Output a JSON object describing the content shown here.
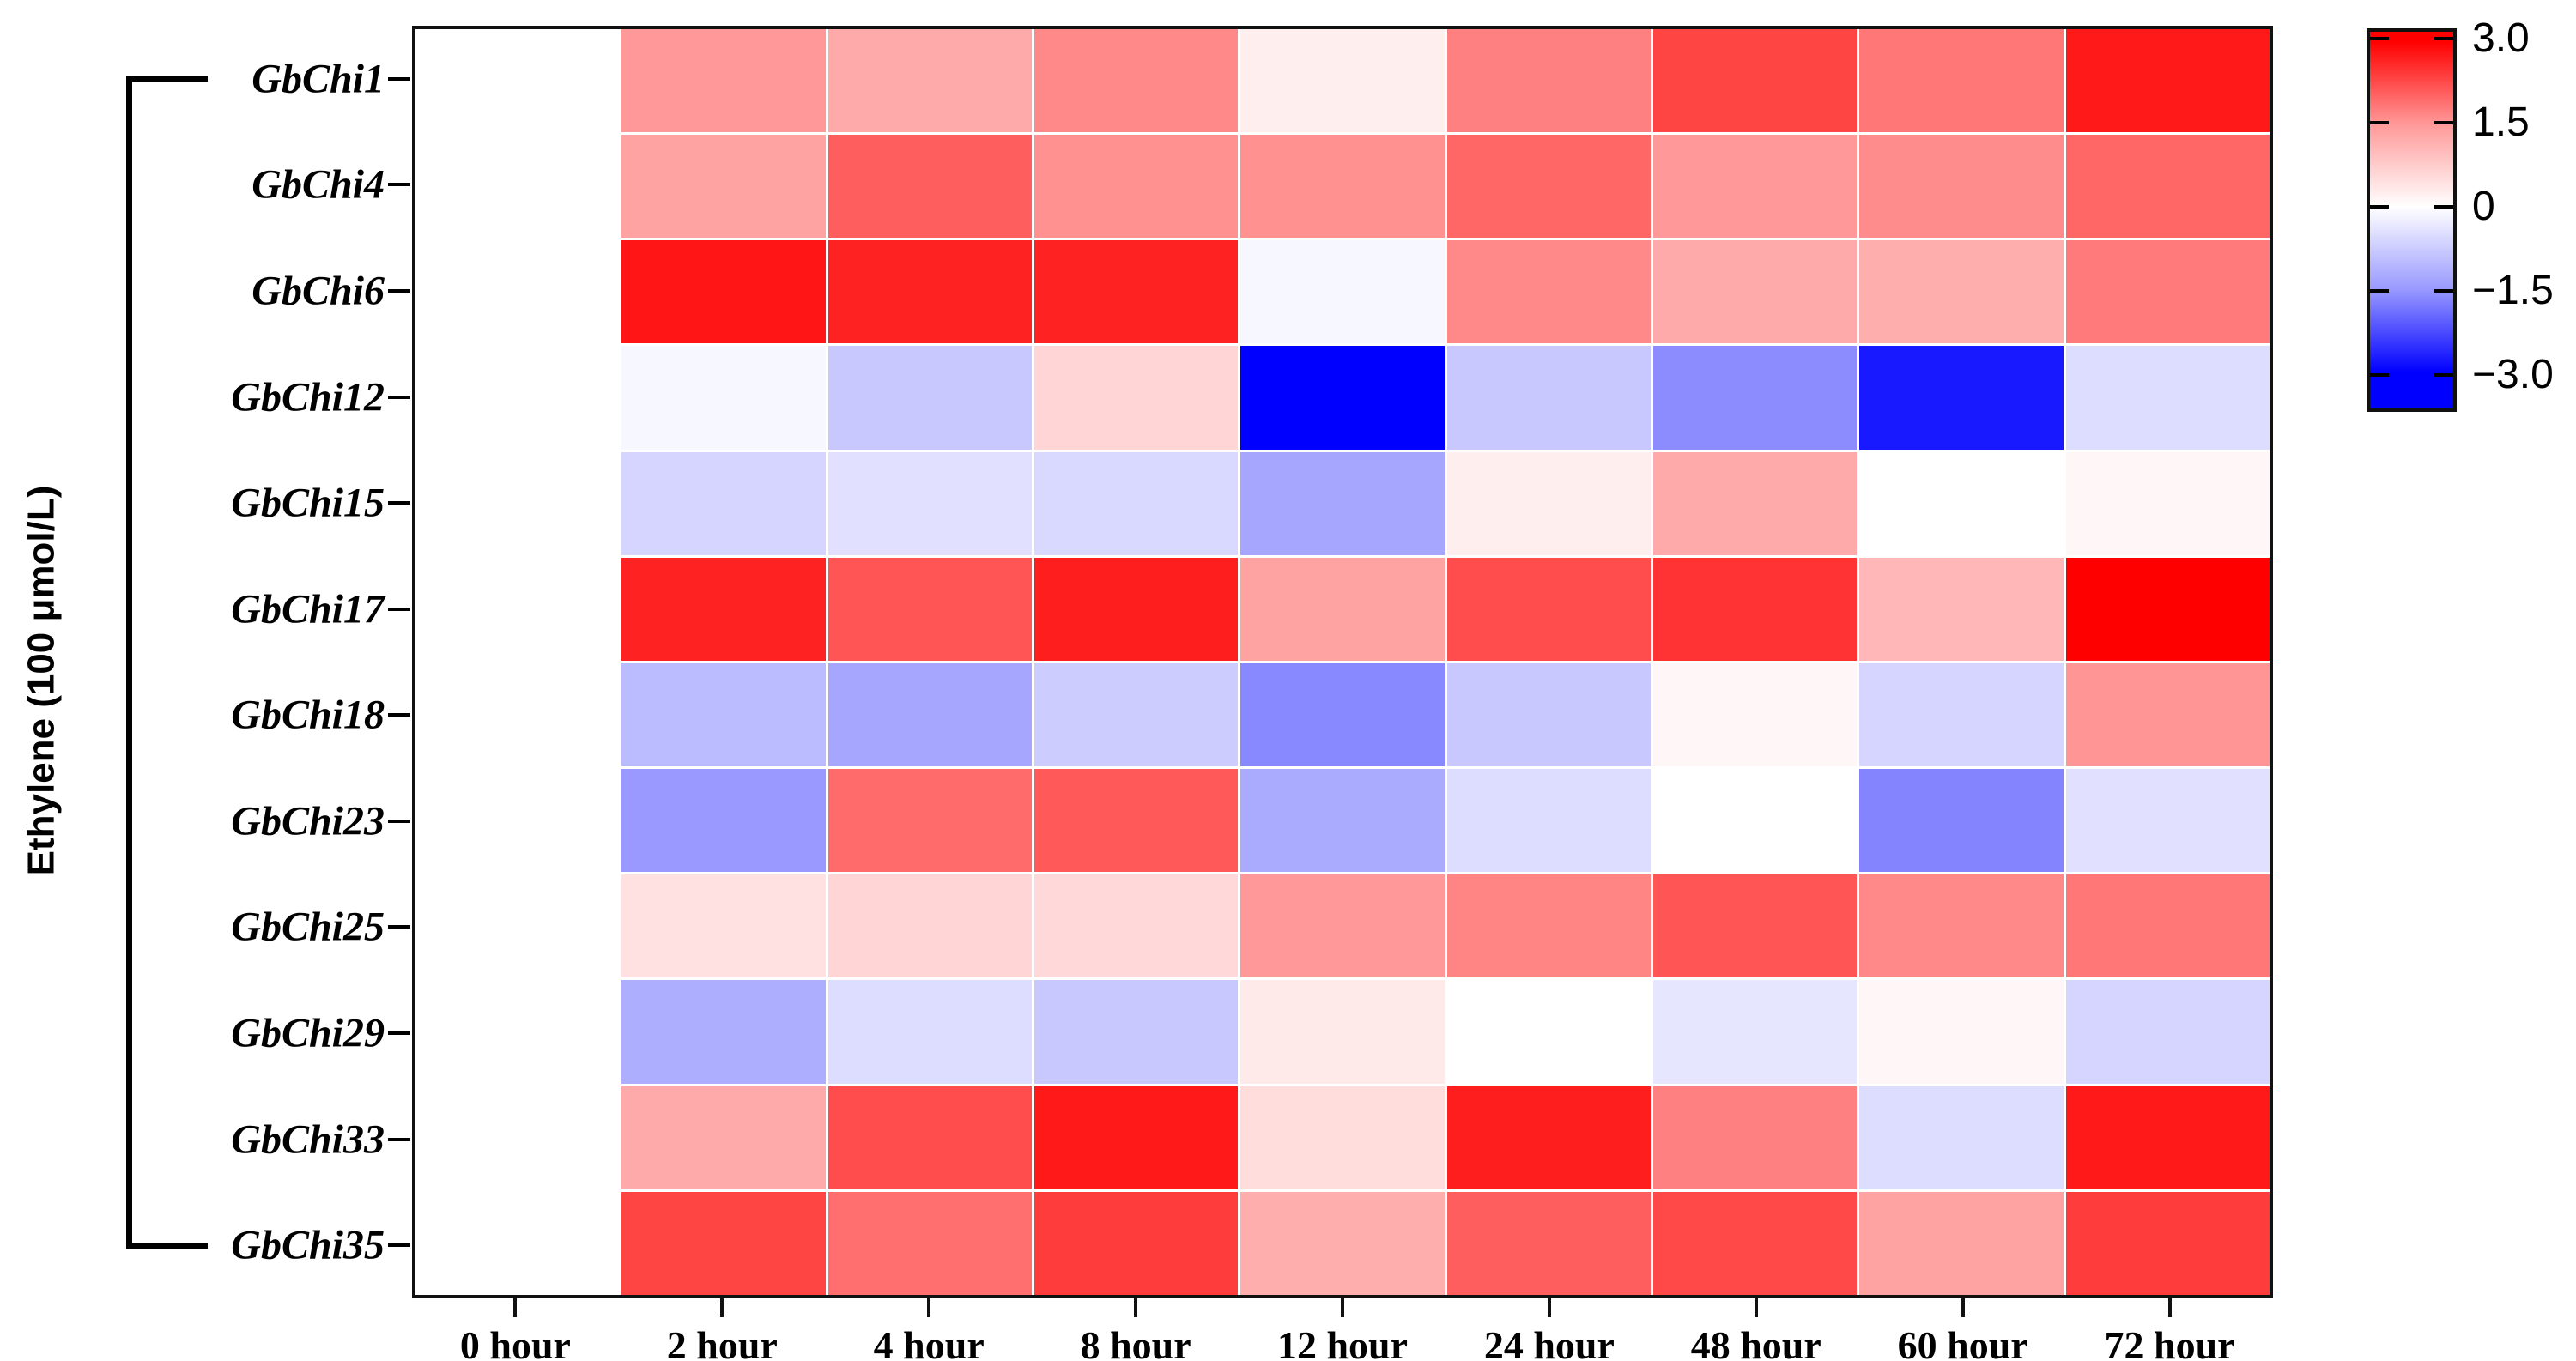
{
  "figure": {
    "y_axis_label": "Ethylene (100 μmol/L)"
  },
  "chart_data": {
    "type": "heatmap",
    "title": "",
    "xlabel": "",
    "ylabel": "Ethylene (100 μmol/L)",
    "x_categories": [
      "0 hour",
      "2 hour",
      "4 hour",
      "8 hour",
      "12 hour",
      "24 hour",
      "48 hour",
      "60 hour",
      "72 hour"
    ],
    "y_categories": [
      "GbChi1",
      "GbChi4",
      "GbChi6",
      "GbChi12",
      "GbChi15",
      "GbChi17",
      "GbChi18",
      "GbChi23",
      "GbChi25",
      "GbChi29",
      "GbChi33",
      "GbChi35"
    ],
    "values": [
      [
        0,
        1.2,
        1.0,
        1.4,
        0.2,
        1.5,
        2.2,
        1.6,
        2.7
      ],
      [
        0,
        1.1,
        1.9,
        1.3,
        1.3,
        1.8,
        1.2,
        1.35,
        1.8
      ],
      [
        0,
        2.75,
        2.6,
        2.6,
        -0.1,
        1.4,
        1.0,
        0.95,
        1.55
      ],
      [
        0,
        -0.1,
        -0.65,
        0.5,
        -3.0,
        -0.65,
        -1.35,
        -2.7,
        -0.4
      ],
      [
        0,
        -0.5,
        -0.35,
        -0.45,
        -1.05,
        0.2,
        1.0,
        0.0,
        0.1
      ],
      [
        0,
        2.6,
        2.0,
        2.65,
        1.1,
        2.1,
        2.4,
        0.85,
        3.0
      ],
      [
        0,
        -0.8,
        -1.05,
        -0.6,
        -1.4,
        -0.65,
        0.1,
        -0.5,
        1.25
      ],
      [
        0,
        -1.2,
        1.75,
        1.95,
        -1.0,
        -0.4,
        0.0,
        -1.45,
        -0.35
      ],
      [
        0,
        0.35,
        0.5,
        0.45,
        1.2,
        1.45,
        2.0,
        1.4,
        1.6
      ],
      [
        0,
        -0.95,
        -0.4,
        -0.65,
        0.25,
        0.0,
        -0.3,
        0.1,
        -0.5
      ],
      [
        0,
        1.0,
        2.1,
        2.7,
        0.4,
        2.65,
        1.5,
        -0.4,
        2.7
      ],
      [
        0,
        2.2,
        1.7,
        2.3,
        0.95,
        1.9,
        2.15,
        1.1,
        2.3
      ]
    ],
    "value_range": [
      -3,
      3
    ],
    "colorbar": {
      "tick_labels": [
        "3.0",
        "1.5",
        "0",
        "−1.5",
        "−3.0"
      ],
      "tick_values": [
        3.0,
        1.5,
        0.0,
        -1.5,
        -3.0
      ],
      "max_color": "#ff0000",
      "mid_color": "#ffffff",
      "min_color": "#0000ff"
    },
    "layout_hints": {
      "grid": "off",
      "legend_position": "right",
      "row_group_bracket": "all rows grouped under one treatment bracket"
    }
  }
}
